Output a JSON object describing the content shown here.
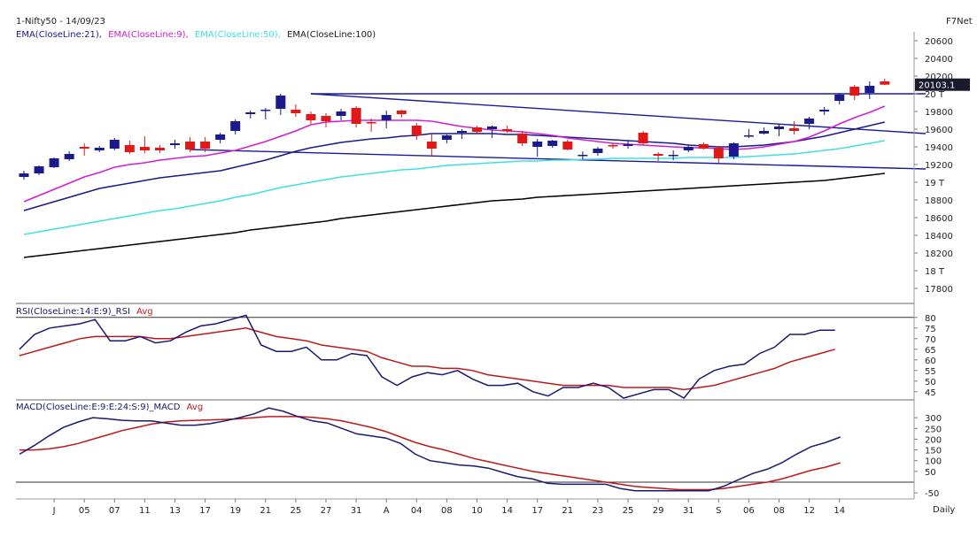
{
  "header": {
    "symbol_date": "1-Nifty50 - 14/09/23",
    "provider": "F7Net",
    "price_label": "20103.1"
  },
  "legend": [
    {
      "text": "EMA(CloseLine:21),",
      "color": "#1a1a8c"
    },
    {
      "text": "EMA(CloseLine:9),",
      "color": "#d020d0"
    },
    {
      "text": "EMA(CloseLine:50),",
      "color": "#40e0e0"
    },
    {
      "text": "EMA(CloseLine:100)",
      "color": "#000000"
    }
  ],
  "colors": {
    "up": "#1a1a8c",
    "down": "#e01818",
    "rsi": "#1a1a6e",
    "avg": "#c01818",
    "ema21": "#1a1a8c",
    "ema9": "#d020d0",
    "ema50": "#40e0e0",
    "ema100": "#000000",
    "trend": "#1a1aa0"
  },
  "chart_data": [
    {
      "type": "candlestick",
      "title": "1-Nifty50 - 14/09/23",
      "ylim": [
        17700,
        20700
      ],
      "y_ticks": [
        "20600",
        "20400",
        "20200",
        "20 T",
        "19800",
        "19600",
        "19400",
        "19200",
        "19 T",
        "18800",
        "18600",
        "18400",
        "18200",
        "18 T",
        "17800"
      ],
      "y_tick_values": [
        20600,
        20400,
        20200,
        20000,
        19800,
        19600,
        19400,
        19200,
        19000,
        18800,
        18600,
        18400,
        18200,
        18000,
        17800
      ],
      "last_price": 20103.1,
      "x_labels": [
        "J",
        "05",
        "07",
        "11",
        "13",
        "17",
        "19",
        "21",
        "25",
        "27",
        "31",
        "A",
        "04",
        "08",
        "10",
        "14",
        "17",
        "21",
        "23",
        "25",
        "29",
        "31",
        "S",
        "06",
        "08",
        "12",
        "14"
      ],
      "x_label_index": [
        2,
        4,
        6,
        8,
        10,
        12,
        14,
        16,
        18,
        20,
        22,
        24,
        26,
        28,
        30,
        32,
        34,
        36,
        38,
        40,
        42,
        44,
        46,
        48,
        50,
        52,
        54
      ],
      "x_axis_label": "Daily",
      "candles": [
        {
          "o": 19060,
          "h": 19130,
          "l": 19030,
          "c": 19100
        },
        {
          "o": 19100,
          "h": 19190,
          "l": 19080,
          "c": 19180
        },
        {
          "o": 19170,
          "h": 19280,
          "l": 19160,
          "c": 19270
        },
        {
          "o": 19260,
          "h": 19350,
          "l": 19240,
          "c": 19320
        },
        {
          "o": 19400,
          "h": 19440,
          "l": 19300,
          "c": 19380
        },
        {
          "o": 19360,
          "h": 19410,
          "l": 19340,
          "c": 19390
        },
        {
          "o": 19380,
          "h": 19500,
          "l": 19360,
          "c": 19480
        },
        {
          "o": 19420,
          "h": 19470,
          "l": 19320,
          "c": 19340
        },
        {
          "o": 19400,
          "h": 19520,
          "l": 19330,
          "c": 19360
        },
        {
          "o": 19390,
          "h": 19420,
          "l": 19330,
          "c": 19360
        },
        {
          "o": 19420,
          "h": 19480,
          "l": 19380,
          "c": 19440
        },
        {
          "o": 19460,
          "h": 19510,
          "l": 19340,
          "c": 19370
        },
        {
          "o": 19460,
          "h": 19510,
          "l": 19340,
          "c": 19380
        },
        {
          "o": 19480,
          "h": 19560,
          "l": 19440,
          "c": 19540
        },
        {
          "o": 19580,
          "h": 19710,
          "l": 19540,
          "c": 19690
        },
        {
          "o": 19770,
          "h": 19810,
          "l": 19720,
          "c": 19790
        },
        {
          "o": 19810,
          "h": 19840,
          "l": 19710,
          "c": 19820
        },
        {
          "o": 19830,
          "h": 20000,
          "l": 19760,
          "c": 19980
        },
        {
          "o": 19820,
          "h": 19880,
          "l": 19740,
          "c": 19780
        },
        {
          "o": 19770,
          "h": 19800,
          "l": 19660,
          "c": 19700
        },
        {
          "o": 19750,
          "h": 19780,
          "l": 19620,
          "c": 19690
        },
        {
          "o": 19750,
          "h": 19830,
          "l": 19700,
          "c": 19800
        },
        {
          "o": 19840,
          "h": 19860,
          "l": 19620,
          "c": 19660
        },
        {
          "o": 19680,
          "h": 19720,
          "l": 19570,
          "c": 19670
        },
        {
          "o": 19700,
          "h": 19810,
          "l": 19610,
          "c": 19760
        },
        {
          "o": 19810,
          "h": 19820,
          "l": 19730,
          "c": 19770
        },
        {
          "o": 19640,
          "h": 19670,
          "l": 19480,
          "c": 19530
        },
        {
          "o": 19460,
          "h": 19540,
          "l": 19300,
          "c": 19380
        },
        {
          "o": 19480,
          "h": 19540,
          "l": 19440,
          "c": 19530
        },
        {
          "o": 19560,
          "h": 19600,
          "l": 19490,
          "c": 19580
        },
        {
          "o": 19620,
          "h": 19640,
          "l": 19540,
          "c": 19570
        },
        {
          "o": 19600,
          "h": 19640,
          "l": 19500,
          "c": 19630
        },
        {
          "o": 19600,
          "h": 19640,
          "l": 19560,
          "c": 19580
        },
        {
          "o": 19550,
          "h": 19580,
          "l": 19410,
          "c": 19440
        },
        {
          "o": 19400,
          "h": 19490,
          "l": 19290,
          "c": 19460
        },
        {
          "o": 19410,
          "h": 19480,
          "l": 19390,
          "c": 19470
        },
        {
          "o": 19460,
          "h": 19480,
          "l": 19360,
          "c": 19370
        },
        {
          "o": 19300,
          "h": 19350,
          "l": 19260,
          "c": 19310
        },
        {
          "o": 19330,
          "h": 19400,
          "l": 19300,
          "c": 19380
        },
        {
          "o": 19420,
          "h": 19440,
          "l": 19380,
          "c": 19410
        },
        {
          "o": 19410,
          "h": 19470,
          "l": 19380,
          "c": 19430
        },
        {
          "o": 19560,
          "h": 19580,
          "l": 19420,
          "c": 19440
        },
        {
          "o": 19320,
          "h": 19340,
          "l": 19240,
          "c": 19300
        },
        {
          "o": 19300,
          "h": 19360,
          "l": 19250,
          "c": 19310
        },
        {
          "o": 19360,
          "h": 19420,
          "l": 19340,
          "c": 19400
        },
        {
          "o": 19430,
          "h": 19450,
          "l": 19370,
          "c": 19380
        },
        {
          "o": 19390,
          "h": 19410,
          "l": 19220,
          "c": 19270
        },
        {
          "o": 19290,
          "h": 19450,
          "l": 19260,
          "c": 19440
        },
        {
          "o": 19520,
          "h": 19600,
          "l": 19500,
          "c": 19530
        },
        {
          "o": 19550,
          "h": 19620,
          "l": 19540,
          "c": 19580
        },
        {
          "o": 19600,
          "h": 19650,
          "l": 19520,
          "c": 19630
        },
        {
          "o": 19610,
          "h": 19690,
          "l": 19540,
          "c": 19580
        },
        {
          "o": 19660,
          "h": 19740,
          "l": 19600,
          "c": 19720
        },
        {
          "o": 19800,
          "h": 19850,
          "l": 19760,
          "c": 19820
        },
        {
          "o": 19920,
          "h": 20010,
          "l": 19880,
          "c": 19990
        },
        {
          "o": 20080,
          "h": 20100,
          "l": 19930,
          "c": 19980
        },
        {
          "o": 20010,
          "h": 20140,
          "l": 19940,
          "c": 20090
        },
        {
          "o": 20140,
          "h": 20170,
          "l": 20100,
          "c": 20103
        }
      ],
      "ema9": [
        18780,
        18850,
        18920,
        18990,
        19060,
        19110,
        19170,
        19200,
        19220,
        19250,
        19270,
        19290,
        19300,
        19330,
        19360,
        19410,
        19460,
        19520,
        19580,
        19650,
        19680,
        19690,
        19700,
        19700,
        19700,
        19700,
        19700,
        19690,
        19660,
        19630,
        19610,
        19590,
        19580,
        19570,
        19550,
        19530,
        19500,
        19480,
        19460,
        19440,
        19430,
        19420,
        19410,
        19400,
        19390,
        19390,
        19380,
        19370,
        19380,
        19400,
        19430,
        19460,
        19510,
        19580,
        19660,
        19730,
        19790,
        19860
      ],
      "ema21": [
        18680,
        18730,
        18780,
        18830,
        18880,
        18930,
        18960,
        18990,
        19020,
        19050,
        19070,
        19090,
        19110,
        19130,
        19170,
        19210,
        19250,
        19300,
        19350,
        19390,
        19420,
        19450,
        19470,
        19490,
        19500,
        19520,
        19530,
        19550,
        19550,
        19550,
        19550,
        19550,
        19540,
        19540,
        19530,
        19520,
        19510,
        19500,
        19490,
        19480,
        19470,
        19460,
        19450,
        19440,
        19420,
        19410,
        19400,
        19400,
        19410,
        19420,
        19440,
        19460,
        19490,
        19520,
        19560,
        19600,
        19640,
        19680
      ],
      "ema50": [
        18410,
        18440,
        18470,
        18500,
        18530,
        18560,
        18590,
        18620,
        18650,
        18680,
        18700,
        18730,
        18760,
        18790,
        18830,
        18860,
        18900,
        18940,
        18970,
        19000,
        19030,
        19060,
        19080,
        19100,
        19120,
        19140,
        19150,
        19170,
        19190,
        19200,
        19210,
        19220,
        19230,
        19240,
        19240,
        19250,
        19250,
        19260,
        19260,
        19270,
        19270,
        19270,
        19270,
        19270,
        19280,
        19280,
        19280,
        19280,
        19290,
        19300,
        19310,
        19320,
        19340,
        19360,
        19380,
        19410,
        19440,
        19470
      ],
      "ema100": [
        18150,
        18170,
        18190,
        18210,
        18230,
        18250,
        18270,
        18290,
        18310,
        18330,
        18350,
        18370,
        18390,
        18410,
        18430,
        18460,
        18480,
        18500,
        18520,
        18540,
        18560,
        18590,
        18610,
        18630,
        18650,
        18670,
        18690,
        18710,
        18730,
        18750,
        18770,
        18790,
        18800,
        18810,
        18830,
        18840,
        18850,
        18860,
        18870,
        18880,
        18890,
        18900,
        18910,
        18920,
        18930,
        18940,
        18950,
        18960,
        18970,
        18980,
        18990,
        19000,
        19010,
        19020,
        19040,
        19060,
        19080,
        19100
      ],
      "trendlines": [
        {
          "x1": 19,
          "y1": 20000,
          "x2": 60,
          "y2": 20000
        },
        {
          "x1": 19,
          "y1": 20000,
          "x2": 60,
          "y2": 19550
        },
        {
          "x1": 11,
          "y1": 19370,
          "x2": 60,
          "y2": 19150
        }
      ]
    },
    {
      "type": "line",
      "title": "RSI(CloseLine:14:E:9)_RSI",
      "avg_label": "Avg",
      "ylim": [
        42,
        82
      ],
      "y_ticks": [
        "80",
        "75",
        "70",
        "65",
        "60",
        "55",
        "50",
        "45"
      ],
      "y_tick_values": [
        80,
        75,
        70,
        65,
        60,
        55,
        50,
        45
      ],
      "series": [
        {
          "name": "RSI(CloseLine:14:E:9)_RSI",
          "values": [
            65,
            72,
            75,
            76,
            77,
            79,
            69,
            69,
            71,
            68,
            69,
            73,
            76,
            77,
            79,
            81,
            67,
            64,
            64,
            66,
            60,
            60,
            63,
            62,
            52,
            48,
            52,
            54,
            53,
            55,
            51,
            48,
            48,
            49,
            45,
            43,
            47,
            47,
            49,
            47,
            42,
            44,
            46,
            46,
            42,
            51,
            55,
            57,
            58,
            63,
            66,
            72,
            72,
            74,
            74
          ]
        },
        {
          "name": "Avg",
          "values": [
            62,
            64,
            66,
            68,
            70,
            71,
            71,
            71,
            71,
            70,
            70,
            71,
            72,
            73,
            74,
            75,
            73,
            71,
            70,
            69,
            67,
            66,
            65,
            64,
            61,
            59,
            57,
            57,
            56,
            56,
            55,
            53,
            52,
            51,
            50,
            49,
            48,
            48,
            48,
            48,
            47,
            47,
            47,
            47,
            46,
            47,
            48,
            50,
            52,
            54,
            56,
            59,
            61,
            63,
            65
          ]
        }
      ]
    },
    {
      "type": "line",
      "title": "MACD(CloseLine:E:9:E:24:S:9)_MACD",
      "avg_label": "Avg",
      "ylim": [
        -70,
        350
      ],
      "y_ticks": [
        "300",
        "250",
        "200",
        "150",
        "100",
        "50",
        "-50"
      ],
      "y_tick_values": [
        300,
        250,
        200,
        150,
        100,
        50,
        -50
      ],
      "series": [
        {
          "name": "MACD(CloseLine:E:9:E:24:S:9)_MACD",
          "values": [
            130,
            170,
            215,
            255,
            280,
            300,
            295,
            288,
            285,
            285,
            275,
            265,
            265,
            272,
            285,
            300,
            318,
            345,
            330,
            305,
            285,
            275,
            250,
            225,
            215,
            205,
            180,
            130,
            100,
            90,
            80,
            75,
            65,
            45,
            25,
            15,
            -5,
            -10,
            -10,
            -10,
            -10,
            -30,
            -40,
            -40,
            -40,
            -40,
            -40,
            -40,
            -20,
            10,
            40,
            60,
            90,
            130,
            165,
            185,
            210
          ]
        },
        {
          "name": "Avg",
          "values": [
            150,
            150,
            155,
            165,
            180,
            200,
            220,
            240,
            255,
            270,
            280,
            285,
            288,
            290,
            292,
            295,
            300,
            305,
            305,
            305,
            302,
            295,
            285,
            270,
            255,
            235,
            210,
            185,
            165,
            150,
            130,
            110,
            95,
            80,
            65,
            50,
            40,
            30,
            20,
            10,
            0,
            -10,
            -20,
            -25,
            -30,
            -35,
            -35,
            -35,
            -30,
            -20,
            -10,
            0,
            15,
            35,
            55,
            70,
            90
          ]
        }
      ]
    }
  ]
}
